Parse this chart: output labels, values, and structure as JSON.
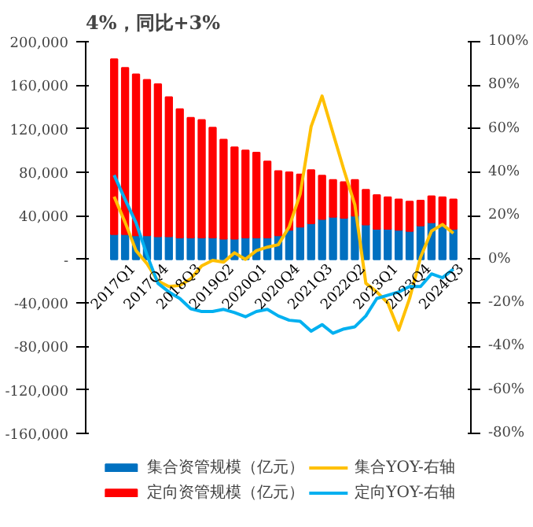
{
  "chart_data": {
    "type": "bar",
    "title": "4%，同比+3%",
    "stacked": true,
    "categories": [
      "2017Q1",
      null,
      null,
      "2017Q4",
      null,
      null,
      "2018Q3",
      null,
      null,
      "2019Q2",
      null,
      null,
      "2020Q1",
      null,
      null,
      "2020Q4",
      null,
      null,
      "2021Q3",
      null,
      null,
      "2022Q2",
      null,
      null,
      "2023Q1",
      null,
      null,
      "2023Q4",
      null,
      null,
      "2024Q3",
      null
    ],
    "series": [
      {
        "name": "集合资管规模（亿元）",
        "color": "#0070c0",
        "values": [
          23000,
          23000,
          22000,
          22000,
          21000,
          21000,
          20000,
          20000,
          20000,
          20000,
          19000,
          19000,
          20000,
          20000,
          20000,
          22000,
          27000,
          30000,
          33000,
          37000,
          39000,
          38000,
          40000,
          32000,
          28000,
          28000,
          27000,
          26000,
          31000,
          34000,
          32000,
          28000
        ]
      },
      {
        "name": "定向资管规模（亿元）",
        "color": "#ff0000",
        "values": [
          161000,
          153000,
          148000,
          143000,
          140000,
          128000,
          118000,
          110000,
          108000,
          101000,
          91000,
          84000,
          80000,
          78000,
          70000,
          59000,
          53000,
          48000,
          49000,
          40000,
          34000,
          33000,
          33000,
          32000,
          31000,
          29000,
          28000,
          27000,
          23000,
          24000,
          25000,
          27000
        ]
      },
      {
        "name": "集合YOY-右轴",
        "type": "line",
        "axis": "y2",
        "color": "#ffc000",
        "values": [
          28.8,
          17,
          4,
          -2,
          -10,
          -12.5,
          -12,
          -9,
          -3,
          -0.5,
          -1.3,
          3,
          0,
          4,
          5.6,
          6.7,
          15,
          30,
          61,
          75,
          58,
          41,
          25,
          -11,
          -15,
          -20,
          -32.5,
          -18,
          1,
          13,
          16,
          12
        ]
      },
      {
        "name": "定向YOY-右轴",
        "type": "line",
        "axis": "y2",
        "color": "#00b0f0",
        "values": [
          38.7,
          27.5,
          16.8,
          2,
          -11,
          -15,
          -18,
          -22.7,
          -24,
          -24,
          -23,
          -24.5,
          -26.4,
          -24,
          -23,
          -26,
          -28,
          -28.5,
          -33,
          -30,
          -34,
          -32,
          -31,
          -26,
          -18,
          -16.5,
          -15,
          -12.5,
          -12.5,
          -6.7,
          -8.5,
          -4.5
        ]
      }
    ],
    "ylim": [
      -160000,
      200000
    ],
    "yticks": [
      {
        "value": -160000,
        "label": "-160,000"
      },
      {
        "value": -120000,
        "label": "-120,000"
      },
      {
        "value": -80000,
        "label": "-80,000"
      },
      {
        "value": -40000,
        "label": "-40,000"
      },
      {
        "value": 0,
        "label": "-"
      },
      {
        "value": 40000,
        "label": "40,000"
      },
      {
        "value": 80000,
        "label": "80,000"
      },
      {
        "value": 120000,
        "label": "120,000"
      },
      {
        "value": 160000,
        "label": "160,000"
      },
      {
        "value": 200000,
        "label": "200,000"
      }
    ],
    "y2lim": [
      -80,
      100
    ],
    "y2ticks": [
      {
        "value": -80,
        "label": "-80%"
      },
      {
        "value": -60,
        "label": "-60%"
      },
      {
        "value": -40,
        "label": "-40%"
      },
      {
        "value": -20,
        "label": "-20%"
      },
      {
        "value": 0,
        "label": "0%"
      },
      {
        "value": 20,
        "label": "20%"
      },
      {
        "value": 40,
        "label": "40%"
      },
      {
        "value": 60,
        "label": "60%"
      },
      {
        "value": 80,
        "label": "80%"
      },
      {
        "value": 100,
        "label": "100%"
      }
    ],
    "legend": "bottom",
    "grid": false
  }
}
